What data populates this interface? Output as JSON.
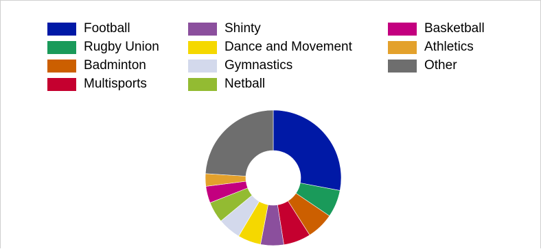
{
  "chart_data": {
    "type": "pie",
    "donut": true,
    "legend_position": "top",
    "start_angle_deg": 90,
    "categories": [
      "Football",
      "Rugby Union",
      "Badminton",
      "Multisports",
      "Shinty",
      "Dance and Movement",
      "Gymnastics",
      "Netball",
      "Basketball",
      "Athletics",
      "Other"
    ],
    "values": [
      28,
      6.5,
      6.5,
      6.5,
      5.5,
      5.5,
      5.5,
      5,
      4,
      3,
      24
    ],
    "colors": [
      "#0019a6",
      "#1a9a5a",
      "#cc5f00",
      "#c5002f",
      "#8b4f9d",
      "#f5d800",
      "#d3d9ec",
      "#93bb32",
      "#c3007f",
      "#e3a12c",
      "#6e6e6e"
    ]
  }
}
